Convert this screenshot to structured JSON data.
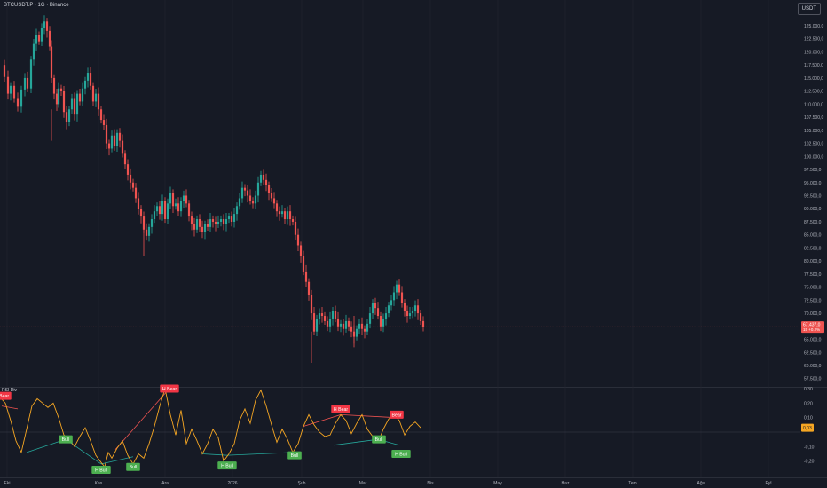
{
  "header": {
    "symbol_title": "BTCUSDT.P · 1G · Binance",
    "currency": "USDT",
    "indicator_title": "RSI Div"
  },
  "colors": {
    "background": "#161a25",
    "up": "#26a69a",
    "down": "#ef5350",
    "osc_line": "#f5a623",
    "bull_label": "#4caf50",
    "bear_label": "#f23645",
    "axis_text": "#b2b5be",
    "grid": "#232632"
  },
  "chart_data": [
    {
      "type": "candlestick",
      "title": "BTCUSDT.P · 1G · Binance",
      "ylim": [
        56000,
        127000
      ],
      "y_ticks": [
        "57.500,0",
        "60.000,0",
        "62.500,0",
        "65.000,0",
        "67.500,0",
        "70.000,0",
        "72.500,0",
        "75.000,0",
        "77.500,0",
        "80.000,0",
        "82.500,0",
        "85.000,0",
        "87.500,0",
        "90.000,0",
        "92.500,0",
        "95.000,0",
        "97.500,0",
        "100.000,0",
        "102.500,0",
        "105.000,0",
        "107.500,0",
        "110.000,0",
        "112.500,0",
        "115.000,0",
        "117.500,0",
        "120.000,0",
        "122.500,0",
        "125.000,0"
      ],
      "x_ticks": [
        "Eki",
        "Kas",
        "Ara",
        "2026",
        "Şub",
        "Mar",
        "Nis",
        "May",
        "Haz",
        "Tem",
        "Ağu",
        "Eyl"
      ],
      "last_price_label": "67.437,0",
      "last_change_label": "15 +0.2%",
      "last_price": 67437,
      "close_path": [
        [
          0,
          117500
        ],
        [
          5,
          115200
        ],
        [
          9,
          112000
        ],
        [
          12,
          113500
        ],
        [
          16,
          111000
        ],
        [
          20,
          109500
        ],
        [
          24,
          112800
        ],
        [
          28,
          115000
        ],
        [
          31,
          113000
        ],
        [
          35,
          118500
        ],
        [
          38,
          121500
        ],
        [
          41,
          123200
        ],
        [
          44,
          122000
        ],
        [
          47,
          124500
        ],
        [
          50,
          125800
        ],
        [
          53,
          124000
        ],
        [
          56,
          121000
        ],
        [
          58,
          115000
        ],
        [
          61,
          112000
        ],
        [
          64,
          110000
        ],
        [
          66,
          113000
        ],
        [
          69,
          112500
        ],
        [
          72,
          108500
        ],
        [
          75,
          106500
        ],
        [
          78,
          109000
        ],
        [
          81,
          111000
        ],
        [
          84,
          108000
        ],
        [
          87,
          112000
        ],
        [
          90,
          110500
        ],
        [
          93,
          113000
        ],
        [
          96,
          114500
        ],
        [
          99,
          116000
        ],
        [
          102,
          113500
        ],
        [
          105,
          110500
        ],
        [
          108,
          112000
        ],
        [
          111,
          109000
        ],
        [
          114,
          107000
        ],
        [
          117,
          106000
        ],
        [
          120,
          102500
        ],
        [
          123,
          101500
        ],
        [
          126,
          104000
        ],
        [
          129,
          102000
        ],
        [
          132,
          104500
        ],
        [
          135,
          103000
        ],
        [
          138,
          100500
        ],
        [
          141,
          98500
        ],
        [
          144,
          96500
        ],
        [
          147,
          95000
        ],
        [
          150,
          94000
        ],
        [
          153,
          92000
        ],
        [
          156,
          90000
        ],
        [
          159,
          88500
        ],
        [
          162,
          86000
        ],
        [
          165,
          84800
        ],
        [
          168,
          86500
        ],
        [
          171,
          88000
        ],
        [
          174,
          89500
        ],
        [
          177,
          90500
        ],
        [
          180,
          89000
        ],
        [
          183,
          91500
        ],
        [
          186,
          88000
        ],
        [
          189,
          91000
        ],
        [
          192,
          93000
        ],
        [
          195,
          90500
        ],
        [
          198,
          91000
        ],
        [
          201,
          89500
        ],
        [
          204,
          91500
        ],
        [
          207,
          92500
        ],
        [
          210,
          91000
        ],
        [
          213,
          88500
        ],
        [
          216,
          87000
        ],
        [
          219,
          86000
        ],
        [
          222,
          88000
        ],
        [
          225,
          86500
        ],
        [
          228,
          85500
        ],
        [
          231,
          87000
        ],
        [
          234,
          86500
        ],
        [
          237,
          88000
        ],
        [
          240,
          87500
        ],
        [
          243,
          87000
        ],
        [
          246,
          87500
        ],
        [
          249,
          88000
        ],
        [
          252,
          87000
        ],
        [
          255,
          88000
        ],
        [
          258,
          88500
        ],
        [
          261,
          87500
        ],
        [
          264,
          89000
        ],
        [
          267,
          90500
        ],
        [
          270,
          92000
        ],
        [
          273,
          94000
        ],
        [
          276,
          93500
        ],
        [
          279,
          92500
        ],
        [
          282,
          91500
        ],
        [
          285,
          91000
        ],
        [
          288,
          92500
        ],
        [
          291,
          95000
        ],
        [
          294,
          96500
        ],
        [
          297,
          95500
        ],
        [
          300,
          94500
        ],
        [
          303,
          93000
        ],
        [
          306,
          92000
        ],
        [
          309,
          91000
        ],
        [
          312,
          89500
        ],
        [
          315,
          89000
        ],
        [
          318,
          89500
        ],
        [
          321,
          88000
        ],
        [
          324,
          89500
        ],
        [
          327,
          88000
        ],
        [
          330,
          87500
        ],
        [
          333,
          85000
        ],
        [
          336,
          83000
        ],
        [
          339,
          81000
        ],
        [
          342,
          78000
        ],
        [
          345,
          76000
        ],
        [
          348,
          73500
        ],
        [
          351,
          70000
        ],
        [
          354,
          66500
        ],
        [
          357,
          69000
        ],
        [
          360,
          70000
        ],
        [
          363,
          69500
        ],
        [
          366,
          68500
        ],
        [
          369,
          67500
        ],
        [
          372,
          69000
        ],
        [
          375,
          70500
        ],
        [
          378,
          69000
        ],
        [
          381,
          67500
        ],
        [
          384,
          68000
        ],
        [
          387,
          67000
        ],
        [
          390,
          68500
        ],
        [
          393,
          67500
        ],
        [
          396,
          66500
        ],
        [
          399,
          65500
        ],
        [
          402,
          67000
        ],
        [
          405,
          68000
        ],
        [
          408,
          67000
        ],
        [
          411,
          66500
        ],
        [
          414,
          68000
        ],
        [
          417,
          70000
        ],
        [
          420,
          72000
        ],
        [
          423,
          71000
        ],
        [
          426,
          69500
        ],
        [
          429,
          67500
        ],
        [
          432,
          69000
        ],
        [
          435,
          70000
        ],
        [
          438,
          71500
        ],
        [
          441,
          72500
        ],
        [
          444,
          74000
        ],
        [
          447,
          75500
        ],
        [
          450,
          74000
        ],
        [
          453,
          72000
        ],
        [
          456,
          70500
        ],
        [
          459,
          69500
        ],
        [
          462,
          70000
        ],
        [
          465,
          70500
        ],
        [
          468,
          71500
        ],
        [
          471,
          70000
        ],
        [
          474,
          68500
        ],
        [
          477,
          67437
        ]
      ],
      "low_wicks": [
        [
          58,
          103000
        ],
        [
          162,
          81000
        ],
        [
          351,
          60500
        ],
        [
          399,
          63500
        ]
      ]
    },
    {
      "type": "line",
      "title": "RSI Div",
      "ylim": [
        -0.27,
        0.3
      ],
      "y_ticks": [
        "0,30",
        "0,20",
        "0,10",
        "-0,10",
        "-0,20"
      ],
      "last_value_label": "0,03",
      "zero_line": 0,
      "series": [
        {
          "values": [
            [
              0,
              0.24
            ],
            [
              6,
              0.2
            ],
            [
              12,
              0.08
            ],
            [
              18,
              -0.06
            ],
            [
              24,
              -0.14
            ],
            [
              30,
              0.02
            ],
            [
              36,
              0.18
            ],
            [
              42,
              0.23
            ],
            [
              48,
              0.2
            ],
            [
              54,
              0.17
            ],
            [
              60,
              0.2
            ],
            [
              66,
              0.1
            ],
            [
              72,
              -0.02
            ],
            [
              78,
              -0.05
            ],
            [
              84,
              -0.1
            ],
            [
              90,
              -0.03
            ],
            [
              96,
              0.03
            ],
            [
              102,
              -0.06
            ],
            [
              108,
              -0.16
            ],
            [
              114,
              -0.21
            ],
            [
              118,
              -0.24
            ],
            [
              122,
              -0.14
            ],
            [
              126,
              -0.18
            ],
            [
              132,
              -0.11
            ],
            [
              138,
              -0.06
            ],
            [
              144,
              -0.16
            ],
            [
              150,
              -0.22
            ],
            [
              156,
              -0.15
            ],
            [
              162,
              -0.18
            ],
            [
              168,
              -0.08
            ],
            [
              174,
              0.04
            ],
            [
              180,
              0.18
            ],
            [
              186,
              0.3
            ],
            [
              192,
              0.12
            ],
            [
              198,
              -0.02
            ],
            [
              204,
              0.15
            ],
            [
              210,
              -0.08
            ],
            [
              216,
              0.02
            ],
            [
              222,
              -0.06
            ],
            [
              228,
              -0.15
            ],
            [
              234,
              -0.08
            ],
            [
              240,
              0.02
            ],
            [
              246,
              -0.04
            ],
            [
              252,
              -0.2
            ],
            [
              258,
              -0.15
            ],
            [
              264,
              -0.08
            ],
            [
              270,
              0.08
            ],
            [
              276,
              0.16
            ],
            [
              282,
              0.06
            ],
            [
              288,
              0.22
            ],
            [
              294,
              0.29
            ],
            [
              300,
              0.18
            ],
            [
              306,
              0.05
            ],
            [
              312,
              -0.07
            ],
            [
              318,
              0.02
            ],
            [
              324,
              -0.05
            ],
            [
              330,
              -0.14
            ],
            [
              336,
              -0.08
            ],
            [
              342,
              0.04
            ],
            [
              348,
              0.12
            ],
            [
              354,
              0.05
            ],
            [
              360,
              0.0
            ],
            [
              366,
              -0.03
            ],
            [
              372,
              -0.02
            ],
            [
              378,
              0.06
            ],
            [
              384,
              0.12
            ],
            [
              390,
              0.08
            ],
            [
              396,
              -0.01
            ],
            [
              402,
              0.06
            ],
            [
              408,
              0.12
            ],
            [
              414,
              0.02
            ],
            [
              420,
              -0.03
            ],
            [
              426,
              -0.07
            ],
            [
              432,
              0.02
            ],
            [
              438,
              0.09
            ],
            [
              444,
              0.12
            ],
            [
              450,
              0.08
            ],
            [
              456,
              -0.02
            ],
            [
              462,
              0.04
            ],
            [
              468,
              0.07
            ],
            [
              474,
              0.03
            ]
          ]
        }
      ],
      "divergence_lines": [
        {
          "from": [
            2,
            0.18
          ],
          "to": [
            20,
            0.16
          ],
          "kind": "bear"
        },
        {
          "from": [
            30,
            -0.14
          ],
          "to": [
            74,
            -0.05
          ],
          "kind": "bull"
        },
        {
          "from": [
            74,
            -0.05
          ],
          "to": [
            114,
            -0.22
          ],
          "kind": "bull"
        },
        {
          "from": [
            114,
            -0.22
          ],
          "to": [
            150,
            -0.17
          ],
          "kind": "bull"
        },
        {
          "from": [
            130,
            -0.12
          ],
          "to": [
            188,
            0.28
          ],
          "kind": "bear"
        },
        {
          "from": [
            228,
            -0.15
          ],
          "to": [
            256,
            -0.16
          ],
          "kind": "bull"
        },
        {
          "from": [
            256,
            -0.16
          ],
          "to": [
            330,
            -0.14
          ],
          "kind": "bull"
        },
        {
          "from": [
            342,
            0.04
          ],
          "to": [
            384,
            0.12
          ],
          "kind": "bear"
        },
        {
          "from": [
            384,
            0.12
          ],
          "to": [
            446,
            0.1
          ],
          "kind": "bear"
        },
        {
          "from": [
            376,
            -0.09
          ],
          "to": [
            426,
            -0.05
          ],
          "kind": "bull"
        },
        {
          "from": [
            426,
            -0.05
          ],
          "to": [
            450,
            -0.09
          ],
          "kind": "bull"
        }
      ],
      "labels": [
        {
          "text": "H Bear",
          "x": 2,
          "y": 0.25,
          "kind": "bear"
        },
        {
          "text": "Bull",
          "x": 74,
          "y": -0.05,
          "kind": "bull"
        },
        {
          "text": "H Bull",
          "x": 114,
          "y": -0.26,
          "kind": "bull"
        },
        {
          "text": "Bull",
          "x": 150,
          "y": -0.24,
          "kind": "bull"
        },
        {
          "text": "H Bear",
          "x": 191,
          "y": 0.3,
          "kind": "bear"
        },
        {
          "text": "H Bull",
          "x": 256,
          "y": -0.23,
          "kind": "bull"
        },
        {
          "text": "Bull",
          "x": 332,
          "y": -0.16,
          "kind": "bull"
        },
        {
          "text": "H Bear",
          "x": 384,
          "y": 0.16,
          "kind": "bear"
        },
        {
          "text": "Bear",
          "x": 447,
          "y": 0.12,
          "kind": "bear"
        },
        {
          "text": "Bull",
          "x": 427,
          "y": -0.05,
          "kind": "bull"
        },
        {
          "text": "H Bull",
          "x": 452,
          "y": -0.15,
          "kind": "bull"
        }
      ]
    }
  ]
}
